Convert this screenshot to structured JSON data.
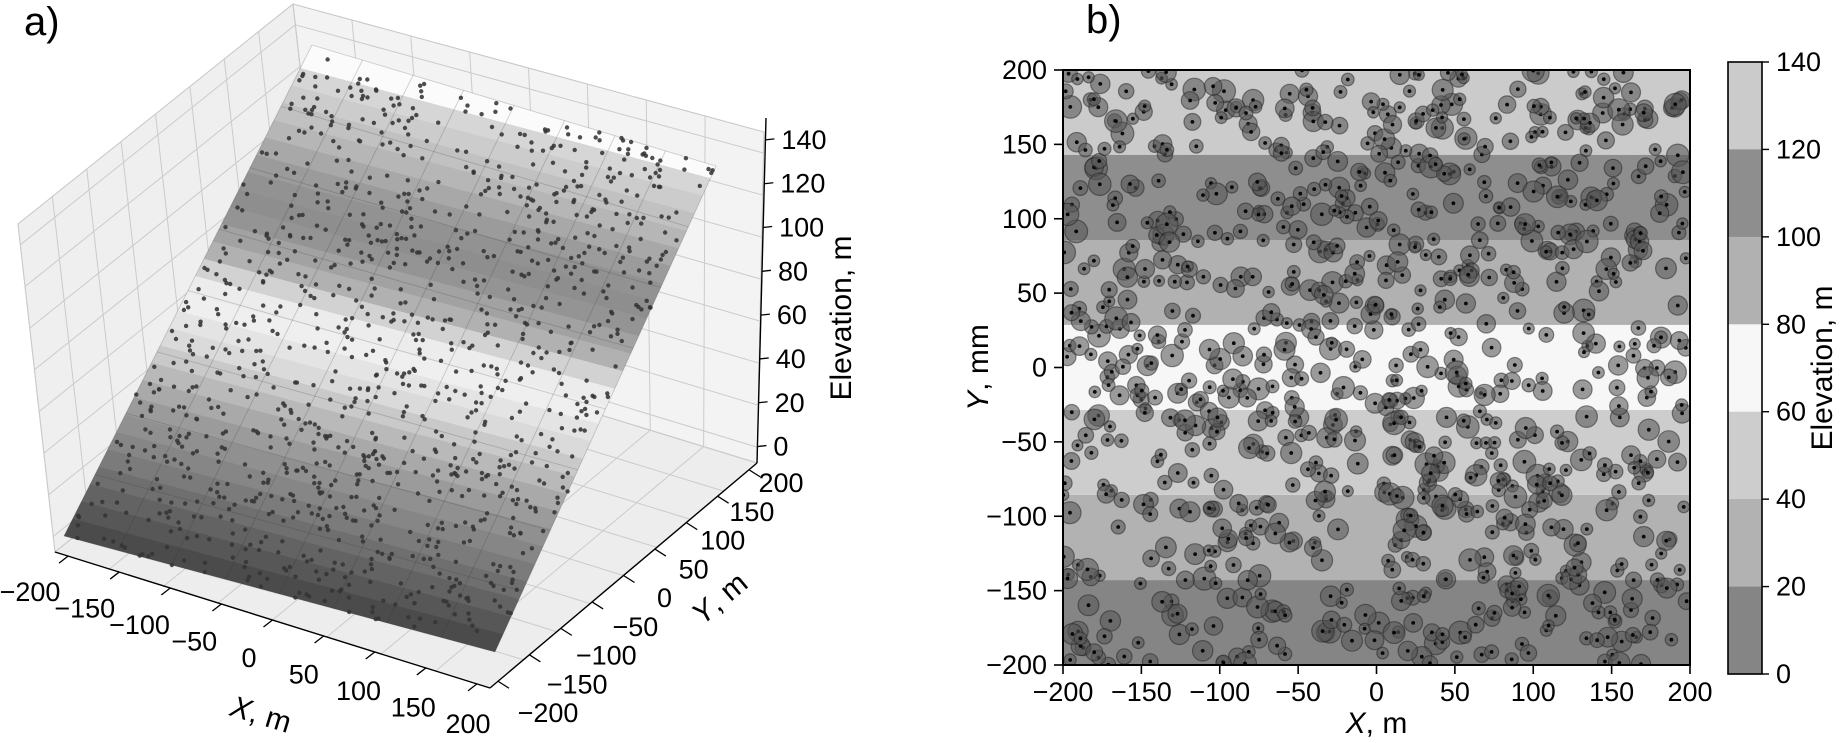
{
  "chart_data": [
    {
      "panel_label": "a)",
      "type": "scatter",
      "subtype": "3d-surface-with-scatter",
      "x_axis": {
        "label": "X, m",
        "range": [
          -200,
          200
        ],
        "ticks": [
          -200,
          -150,
          -100,
          -50,
          0,
          50,
          100,
          150,
          200
        ]
      },
      "y_axis": {
        "label": "Y, m",
        "range": [
          -200,
          200
        ],
        "ticks": [
          -200,
          -150,
          -100,
          -50,
          0,
          50,
          100,
          150,
          200
        ]
      },
      "z_axis": {
        "label": "Elevation, m",
        "range": [
          0,
          140
        ],
        "ticks": [
          0,
          20,
          40,
          60,
          80,
          100,
          120,
          140
        ]
      },
      "surface": {
        "kind": "inclined plane",
        "elevation_formula": "z = 140 * (y + 200) / 400",
        "min_elevation": 0,
        "max_elevation": 140,
        "contour_interval": 20
      },
      "points": {
        "count": 1150,
        "distribution": "uniform over surface",
        "marker_color": "#343434",
        "marker_radius_px": 2.2
      }
    },
    {
      "panel_label": "b)",
      "type": "scatter",
      "subtype": "map-view-bubbles-over-elevation-bands",
      "x_axis": {
        "label": "X, m",
        "range": [
          -200,
          200
        ],
        "ticks": [
          -200,
          -150,
          -100,
          -50,
          0,
          50,
          100,
          150,
          200
        ]
      },
      "y_axis": {
        "label": "Y, mm",
        "range": [
          -200,
          200
        ],
        "ticks": [
          200,
          150,
          100,
          50,
          0,
          -50,
          -100,
          -150,
          -200
        ]
      },
      "elevation_bands": [
        {
          "elevation": [
            120,
            140
          ],
          "y_range": [
            142.9,
            200
          ],
          "color": "#cbcbcb"
        },
        {
          "elevation": [
            100,
            120
          ],
          "y_range": [
            85.7,
            142.9
          ],
          "color": "#8e8e8e"
        },
        {
          "elevation": [
            80,
            100
          ],
          "y_range": [
            28.6,
            85.7
          ],
          "color": "#b1b1b1"
        },
        {
          "elevation": [
            60,
            80
          ],
          "y_range": [
            -28.6,
            28.6
          ],
          "color": "#f7f7f7"
        },
        {
          "elevation": [
            40,
            60
          ],
          "y_range": [
            -85.7,
            -28.6
          ],
          "color": "#cdcdcd"
        },
        {
          "elevation": [
            20,
            40
          ],
          "y_range": [
            -142.9,
            -85.7
          ],
          "color": "#b2b2b2"
        },
        {
          "elevation": [
            0,
            20
          ],
          "y_range": [
            -200,
            -142.9
          ],
          "color": "#858585"
        }
      ],
      "points": {
        "count": 950,
        "distribution": "uniform",
        "marker": "gray bubble with black center dot",
        "bubble_color": "#565656",
        "bubble_edge_color": "#1f1f1f",
        "center_dot_color": "#000000"
      },
      "colorbar": {
        "label": "Elevation, m",
        "ticks": [
          140,
          120,
          100,
          80,
          60,
          40,
          20,
          0
        ],
        "band_colors_top_to_bottom": [
          "#cbcbcb",
          "#8e8e8e",
          "#b1b1b1",
          "#f7f7f7",
          "#cdcdcd",
          "#b2b2b2",
          "#858585"
        ]
      }
    }
  ]
}
